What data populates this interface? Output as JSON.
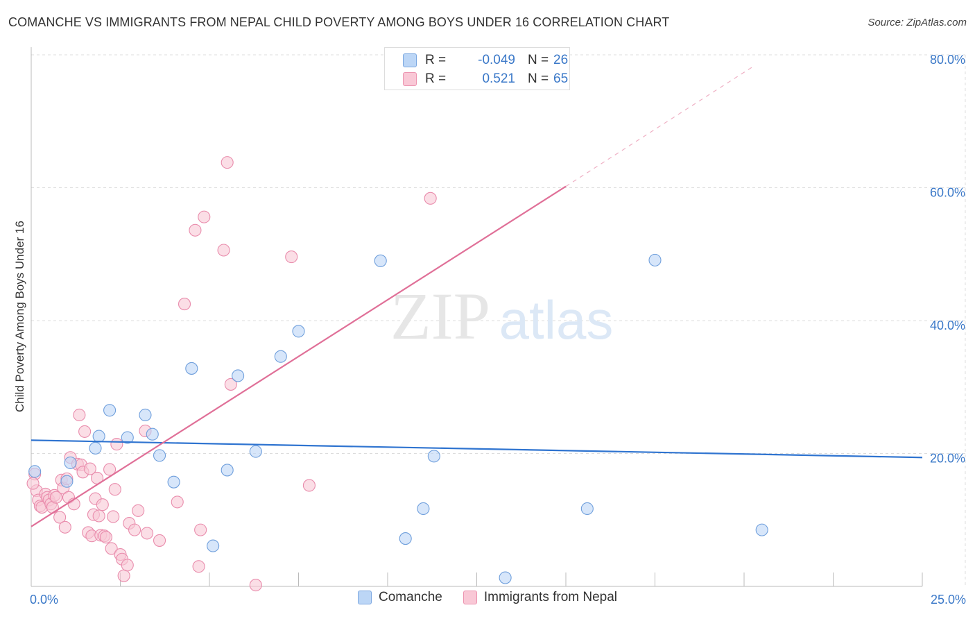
{
  "header": {
    "title": "COMANCHE VS IMMIGRANTS FROM NEPAL CHILD POVERTY AMONG BOYS UNDER 16 CORRELATION CHART",
    "source": "Source: ZipAtlas.com"
  },
  "watermark": {
    "zip": "ZIP",
    "atlas": "atlas"
  },
  "stats": {
    "rows": [
      {
        "r_label": "R =",
        "r_value": "-0.049",
        "n_label": "N =",
        "n_value": "26"
      },
      {
        "r_label": "R =",
        "r_value": "0.521",
        "n_label": "N =",
        "n_value": "65"
      }
    ]
  },
  "colors": {
    "comanche": "#aac8f0",
    "comanche_line": "#2f74d0",
    "nepal": "#f7b8ca",
    "nepal_line": "#e07098",
    "value_text": "#3a78c8",
    "grid": "#dcdcdc"
  },
  "chart_data": {
    "type": "scatter",
    "title": "COMANCHE VS IMMIGRANTS FROM NEPAL CHILD POVERTY AMONG BOYS UNDER 16 CORRELATION CHART",
    "xlabel": "",
    "ylabel": "Child Poverty Among Boys Under 16",
    "xlim": [
      0,
      25
    ],
    "ylim": [
      0,
      80
    ],
    "x_tick_labels": [
      "0.0%",
      "25.0%"
    ],
    "y_ticks": [
      20,
      40,
      60,
      80
    ],
    "y_tick_labels": [
      "20.0%",
      "40.0%",
      "60.0%",
      "80.0%"
    ],
    "grid": true,
    "legend_position": "bottom-center",
    "series": [
      {
        "name": "Comanche",
        "color": "#aac8f0",
        "r": -0.049,
        "n": 26,
        "trend": {
          "x": [
            0,
            25
          ],
          "y": [
            22.0,
            19.4
          ]
        },
        "points": [
          {
            "x": 0.1,
            "y": 17.3
          },
          {
            "x": 1.1,
            "y": 18.6
          },
          {
            "x": 1.0,
            "y": 15.8
          },
          {
            "x": 1.8,
            "y": 20.8
          },
          {
            "x": 1.9,
            "y": 22.6
          },
          {
            "x": 2.2,
            "y": 26.5
          },
          {
            "x": 2.7,
            "y": 22.4
          },
          {
            "x": 3.2,
            "y": 25.8
          },
          {
            "x": 3.4,
            "y": 22.9
          },
          {
            "x": 3.6,
            "y": 19.7
          },
          {
            "x": 4.0,
            "y": 15.7
          },
          {
            "x": 4.5,
            "y": 32.8
          },
          {
            "x": 5.1,
            "y": 6.1
          },
          {
            "x": 5.5,
            "y": 17.5
          },
          {
            "x": 5.8,
            "y": 31.7
          },
          {
            "x": 6.3,
            "y": 20.3
          },
          {
            "x": 7.0,
            "y": 34.6
          },
          {
            "x": 7.5,
            "y": 38.4
          },
          {
            "x": 9.8,
            "y": 49.0
          },
          {
            "x": 10.5,
            "y": 7.2
          },
          {
            "x": 11.0,
            "y": 11.7
          },
          {
            "x": 11.3,
            "y": 19.6
          },
          {
            "x": 13.3,
            "y": 1.3
          },
          {
            "x": 15.6,
            "y": 11.7
          },
          {
            "x": 17.5,
            "y": 49.1
          },
          {
            "x": 20.5,
            "y": 8.5
          }
        ]
      },
      {
        "name": "Immigrants from Nepal",
        "color": "#f7b8ca",
        "r": 0.521,
        "n": 65,
        "trend": {
          "x": [
            0,
            15
          ],
          "y": [
            9.0,
            60.2
          ]
        },
        "trend_extension": {
          "x": [
            15,
            20.3
          ],
          "y": [
            60.2,
            78.4
          ]
        },
        "points": [
          {
            "x": 0.1,
            "y": 16.9
          },
          {
            "x": 0.15,
            "y": 14.4
          },
          {
            "x": 0.2,
            "y": 13.0
          },
          {
            "x": 0.25,
            "y": 12.1
          },
          {
            "x": 0.3,
            "y": 11.9
          },
          {
            "x": 0.4,
            "y": 13.9
          },
          {
            "x": 0.45,
            "y": 13.4
          },
          {
            "x": 0.5,
            "y": 13.0
          },
          {
            "x": 0.55,
            "y": 12.4
          },
          {
            "x": 0.6,
            "y": 11.9
          },
          {
            "x": 0.65,
            "y": 13.7
          },
          {
            "x": 0.7,
            "y": 13.4
          },
          {
            "x": 0.8,
            "y": 10.4
          },
          {
            "x": 0.85,
            "y": 16.0
          },
          {
            "x": 0.9,
            "y": 14.8
          },
          {
            "x": 0.95,
            "y": 8.9
          },
          {
            "x": 1.0,
            "y": 16.2
          },
          {
            "x": 1.05,
            "y": 13.4
          },
          {
            "x": 1.1,
            "y": 19.4
          },
          {
            "x": 1.2,
            "y": 12.4
          },
          {
            "x": 1.3,
            "y": 18.4
          },
          {
            "x": 1.35,
            "y": 25.8
          },
          {
            "x": 1.4,
            "y": 18.3
          },
          {
            "x": 1.45,
            "y": 17.2
          },
          {
            "x": 1.5,
            "y": 23.3
          },
          {
            "x": 1.6,
            "y": 8.1
          },
          {
            "x": 1.65,
            "y": 17.7
          },
          {
            "x": 1.7,
            "y": 7.6
          },
          {
            "x": 1.75,
            "y": 10.8
          },
          {
            "x": 1.8,
            "y": 13.2
          },
          {
            "x": 1.85,
            "y": 16.3
          },
          {
            "x": 1.9,
            "y": 10.6
          },
          {
            "x": 1.95,
            "y": 7.7
          },
          {
            "x": 2.0,
            "y": 12.3
          },
          {
            "x": 2.05,
            "y": 7.6
          },
          {
            "x": 2.1,
            "y": 7.4
          },
          {
            "x": 2.2,
            "y": 17.6
          },
          {
            "x": 2.25,
            "y": 5.7
          },
          {
            "x": 2.3,
            "y": 10.5
          },
          {
            "x": 2.35,
            "y": 14.6
          },
          {
            "x": 2.4,
            "y": 21.4
          },
          {
            "x": 2.5,
            "y": 4.8
          },
          {
            "x": 2.55,
            "y": 4.1
          },
          {
            "x": 2.6,
            "y": 1.6
          },
          {
            "x": 2.7,
            "y": 3.2
          },
          {
            "x": 2.75,
            "y": 9.5
          },
          {
            "x": 2.9,
            "y": 8.5
          },
          {
            "x": 3.0,
            "y": 11.4
          },
          {
            "x": 3.2,
            "y": 23.4
          },
          {
            "x": 3.25,
            "y": 8.0
          },
          {
            "x": 3.6,
            "y": 6.9
          },
          {
            "x": 4.1,
            "y": 12.7
          },
          {
            "x": 4.3,
            "y": 42.5
          },
          {
            "x": 4.6,
            "y": 53.6
          },
          {
            "x": 4.7,
            "y": 3.0
          },
          {
            "x": 4.75,
            "y": 8.5
          },
          {
            "x": 4.85,
            "y": 55.6
          },
          {
            "x": 5.4,
            "y": 50.6
          },
          {
            "x": 5.5,
            "y": 63.8
          },
          {
            "x": 5.6,
            "y": 30.4
          },
          {
            "x": 6.3,
            "y": 0.2
          },
          {
            "x": 7.3,
            "y": 49.6
          },
          {
            "x": 7.8,
            "y": 15.2
          },
          {
            "x": 11.2,
            "y": 58.4
          },
          {
            "x": 0.05,
            "y": 15.5
          }
        ]
      }
    ]
  }
}
